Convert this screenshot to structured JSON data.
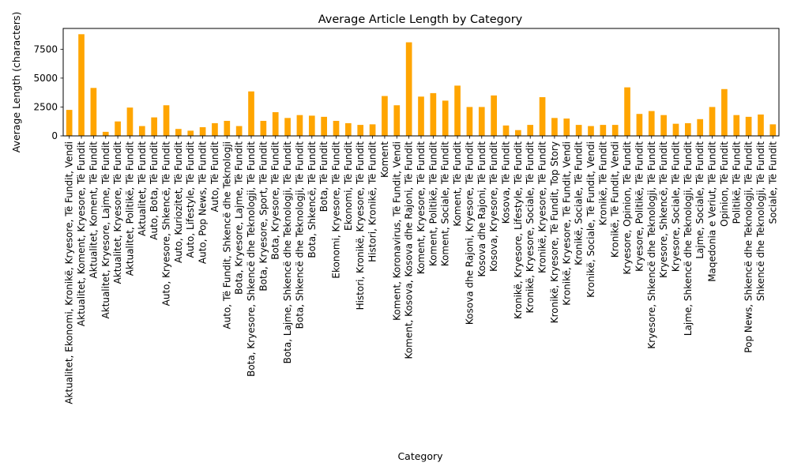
{
  "chart_data": {
    "type": "bar",
    "title": "Average Article Length by Category",
    "xlabel": "Category",
    "ylabel": "Average Length (characters)",
    "ylim": [
      0,
      9300
    ],
    "yticks": [
      0,
      2500,
      5000,
      7500
    ],
    "bar_color": "#FFA500",
    "grid": false,
    "legend": "none",
    "categories": [
      "Aktualitet, Ekonomi, Kronikë, Kryesore, Të Fundit, Vendi",
      "Aktualitet, Koment, Kryesore, Të Fundit",
      "Aktualitet, Koment, Të Fundit",
      "Aktualitet, Kryesore, Lajme, Të Fundit",
      "Aktualitet, Kryesore, Të Fundit",
      "Aktualitet, Politikë, Të Fundit",
      "Aktualitet, Të Fundit",
      "Auto, Bota, Të Fundit",
      "Auto, Kryesore, Shkencë, Të Fundit",
      "Auto, Kuriozitet, Të Fundit",
      "Auto, Lifestyle, Të Fundit",
      "Auto, Pop News, Të Fundit",
      "Auto, Të Fundit",
      "Auto, Të Fundit, Shkencë dhe Teknologji",
      "Bota, Kryesore, Lajme, Të Fundit",
      "Bota, Kryesore, Shkencë dhe Teknologji, Të Fundit",
      "Bota, Kryesore, Sport, Të Fundit",
      "Bota, Kryesore, Të Fundit",
      "Bota, Lajme, Shkencë dhe Teknologji, Të Fundit",
      "Bota, Shkencë dhe Teknologji, Të Fundit",
      "Bota, Shkencë, Të Fundit",
      "Bota, Të Fundit",
      "Ekonomi, Kryesore, Të Fundit",
      "Ekonomi, Të Fundit",
      "Histori, Kronikë, Kryesore, Të Fundit",
      "Histori, Kronikë, Të Fundit",
      "Koment",
      "Koment, Koronavirus, Të Fundit, Vendi",
      "Koment, Kosova, Kosova dhe Rajoni, Të Fundit",
      "Koment, Kryesore, Të Fundit",
      "Koment, Politikë, Të Fundit",
      "Koment, Sociale, Të Fundit",
      "Koment, Të Fundit",
      "Kosova dhe Rajoni, Kryesore, Të Fundit",
      "Kosova dhe Rajoni, Të Fundit",
      "Kosova, Kryesore, Të Fundit",
      "Kosova, Të Fundit",
      "Kronikë, Kryesore, Lifestyle, Të Fundit",
      "Kronikë, Kryesore, Sociale, Të Fundit",
      "Kronikë, Kryesore, Të Fundit",
      "Kronikë, Kryesore, Të Fundit, Top Story",
      "Kronikë, Kryesore, Të Fundit, Vendi",
      "Kronikë, Sociale, Të Fundit",
      "Kronikë, Sociale, Të Fundit, Vendi",
      "Kronikë, Të Fundit",
      "Kronikë, Të Fundit, Vendi",
      "Kryesore, Opinion, Të Fundit",
      "Kryesore, Politikë, Të Fundit",
      "Kryesore, Shkencë dhe Teknologji, Të Fundit",
      "Kryesore, Shkencë, Të Fundit",
      "Kryesore, Sociale, Të Fundit",
      "Lajme, Shkencë dhe Teknologji, Të Fundit",
      "Lajme, Sociale, Të Fundit",
      "Maqedonia e Veriut, Të Fundit",
      "Opinion, Të Fundit",
      "Politikë, Të Fundit",
      "Pop News, Shkencë dhe Teknologji, Të Fundit",
      "Shkencë dhe Teknologji, Të Fundit",
      "Sociale, Të Fundit"
    ],
    "values": [
      2250,
      8800,
      4150,
      350,
      1250,
      2450,
      850,
      1600,
      2650,
      600,
      450,
      750,
      1100,
      1300,
      850,
      3850,
      1300,
      2050,
      1550,
      1800,
      1750,
      1650,
      1300,
      1100,
      950,
      1000,
      3450,
      2650,
      8100,
      3400,
      3700,
      3050,
      4350,
      2500,
      2500,
      3500,
      900,
      500,
      950,
      3350,
      1550,
      1500,
      950,
      850,
      950,
      950,
      4200,
      1900,
      2150,
      1800,
      1050,
      1100,
      1450,
      2500,
      4050,
      1800,
      1650,
      1850,
      1000
    ]
  }
}
